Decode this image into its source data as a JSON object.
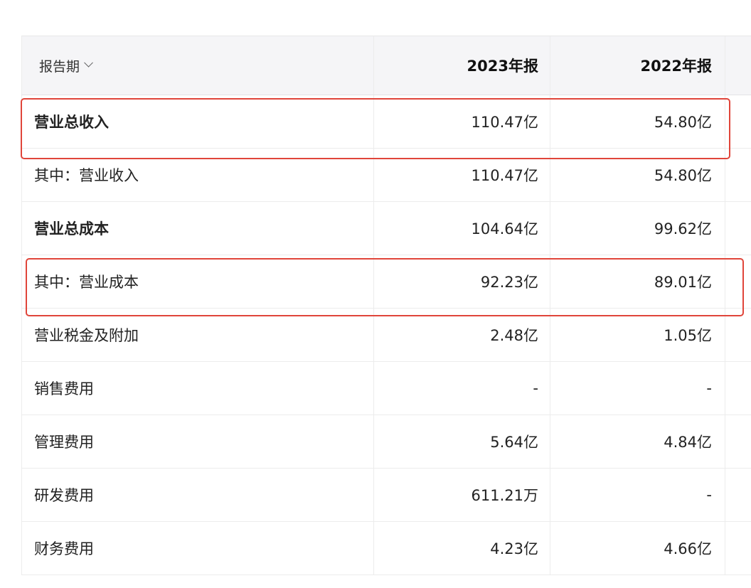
{
  "header": {
    "period_label": "报告期",
    "columns": [
      "2023年报",
      "2022年报"
    ]
  },
  "rows": [
    {
      "label": "营业总收入",
      "v2023": "110.47亿",
      "v2022": "54.80亿",
      "bold": true
    },
    {
      "label": "其中：营业收入",
      "v2023": "110.47亿",
      "v2022": "54.80亿",
      "bold": false
    },
    {
      "label": "营业总成本",
      "v2023": "104.64亿",
      "v2022": "99.62亿",
      "bold": true
    },
    {
      "label": "其中：营业成本",
      "v2023": "92.23亿",
      "v2022": "89.01亿",
      "bold": false
    },
    {
      "label": "营业税金及附加",
      "v2023": "2.48亿",
      "v2022": "1.05亿",
      "bold": false
    },
    {
      "label": "销售费用",
      "v2023": "-",
      "v2022": "-",
      "bold": false
    },
    {
      "label": "管理费用",
      "v2023": "5.64亿",
      "v2022": "4.84亿",
      "bold": false
    },
    {
      "label": "研发费用",
      "v2023": "611.21万",
      "v2022": "-",
      "bold": false
    },
    {
      "label": "财务费用",
      "v2023": "4.23亿",
      "v2022": "4.66亿",
      "bold": false
    }
  ],
  "highlight_color": "#e0453a"
}
